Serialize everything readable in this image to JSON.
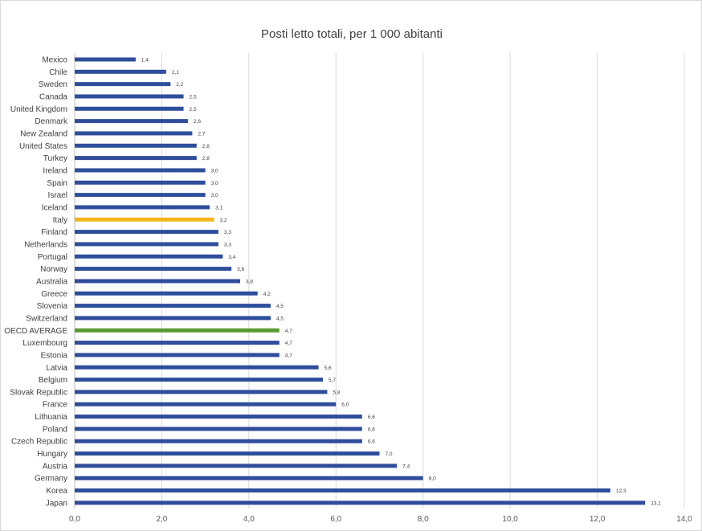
{
  "chart_data": {
    "type": "bar",
    "orientation": "horizontal",
    "title": "Posti letto totali, per 1 000 abitanti",
    "xlabel": "",
    "ylabel": "",
    "xlim": [
      0,
      14
    ],
    "x_ticks": [
      "0,0",
      "2,0",
      "4,0",
      "6,0",
      "8,0",
      "10,0",
      "12,0",
      "14,0"
    ],
    "grid": "vertical",
    "legend": "none",
    "colors": {
      "default": "#2e4d9b",
      "Italy": "#f2b51a",
      "OECD AVERAGE": "#5a9a32"
    },
    "categories": [
      "Mexico",
      "Chile",
      "Sweden",
      "Canada",
      "United Kingdom",
      "Denmark",
      "New Zealand",
      "United States",
      "Turkey",
      "Ireland",
      "Spain",
      "Israel",
      "Iceland",
      "Italy",
      "Finland",
      "Netherlands",
      "Portugal",
      "Norway",
      "Australia",
      "Greece",
      "Slovenia",
      "Switzerland",
      "OECD AVERAGE",
      "Luxembourg",
      "Estonia",
      "Latvia",
      "Belgium",
      "Slovak Republic",
      "France",
      "Lithuania",
      "Poland",
      "Czech Republic",
      "Hungary",
      "Austria",
      "Germany",
      "Korea",
      "Japan"
    ],
    "values": [
      1.4,
      2.1,
      2.2,
      2.5,
      2.5,
      2.6,
      2.7,
      2.8,
      2.8,
      3.0,
      3.0,
      3.0,
      3.1,
      3.2,
      3.3,
      3.3,
      3.4,
      3.6,
      3.8,
      4.2,
      4.5,
      4.5,
      4.7,
      4.7,
      4.7,
      5.6,
      5.7,
      5.8,
      6.0,
      6.6,
      6.6,
      6.6,
      7.0,
      7.4,
      8.0,
      12.3,
      13.1
    ],
    "value_labels": [
      "1,4",
      "2,1",
      "2,2",
      "2,5",
      "2,5",
      "2,6",
      "2,7",
      "2,8",
      "2,8",
      "3,0",
      "3,0",
      "3,0",
      "3,1",
      "3,2",
      "3,3",
      "3,3",
      "3,4",
      "3,6",
      "3,8",
      "4,2",
      "4,5",
      "4,5",
      "4,7",
      "4,7",
      "4,7",
      "5,6",
      "5,7",
      "5,8",
      "6,0",
      "6,6",
      "6,6",
      "6,6",
      "7,0",
      "7,4",
      "8,0",
      "12,3",
      "13,1"
    ]
  }
}
